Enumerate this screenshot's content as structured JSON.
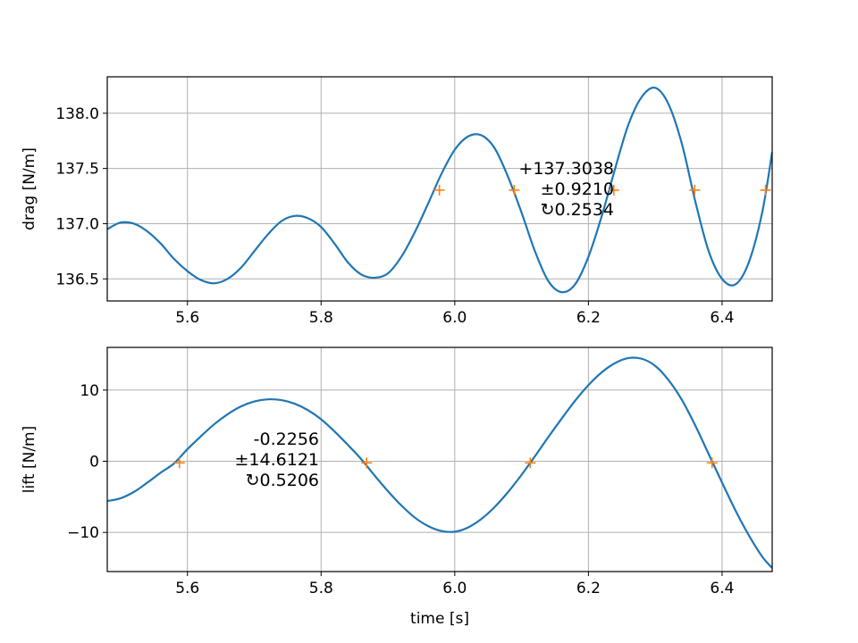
{
  "chart_data": [
    {
      "type": "line",
      "xlabel": "",
      "ylabel": "drag [N/m]",
      "xlim": [
        5.48,
        6.475
      ],
      "ylim": [
        136.3,
        138.33
      ],
      "xticks": [
        5.6,
        5.8,
        6.0,
        6.2,
        6.4
      ],
      "xtick_labels": [
        "5.6",
        "5.8",
        "6.0",
        "6.2",
        "6.4"
      ],
      "yticks": [
        136.5,
        137.0,
        137.5,
        138.0
      ],
      "ytick_labels": [
        "136.5",
        "137.0",
        "137.5",
        "138.0"
      ],
      "grid": true,
      "series": [
        {
          "color": "#1f77b4",
          "x": [
            5.48,
            5.5,
            5.52,
            5.54,
            5.56,
            5.58,
            5.6,
            5.62,
            5.64,
            5.66,
            5.68,
            5.7,
            5.72,
            5.74,
            5.76,
            5.78,
            5.8,
            5.82,
            5.84,
            5.86,
            5.88,
            5.9,
            5.92,
            5.94,
            5.96,
            5.98,
            6.0,
            6.02,
            6.04,
            6.06,
            6.08,
            6.1,
            6.12,
            6.14,
            6.16,
            6.18,
            6.2,
            6.22,
            6.24,
            6.26,
            6.28,
            6.3,
            6.32,
            6.34,
            6.36,
            6.38,
            6.4,
            6.42,
            6.44,
            6.46,
            6.475
          ],
          "y": [
            136.95,
            137.01,
            137.0,
            136.93,
            136.82,
            136.68,
            136.57,
            136.49,
            136.46,
            136.5,
            136.6,
            136.75,
            136.9,
            137.02,
            137.07,
            137.05,
            136.97,
            136.82,
            136.65,
            136.54,
            136.51,
            136.55,
            136.7,
            136.92,
            137.18,
            137.45,
            137.67,
            137.79,
            137.8,
            137.68,
            137.42,
            137.1,
            136.75,
            136.48,
            136.38,
            136.45,
            136.7,
            137.07,
            137.5,
            137.9,
            138.15,
            138.23,
            138.08,
            137.72,
            137.2,
            136.75,
            136.5,
            136.45,
            136.65,
            137.1,
            137.65
          ]
        },
        {
          "color": "#ff7f0e",
          "marker": "+",
          "x": [
            5.977,
            6.089,
            6.238,
            6.359,
            6.465
          ],
          "y": [
            137.3038,
            137.3038,
            137.3038,
            137.3038,
            137.3038
          ]
        }
      ],
      "annotation": [
        "+137.3038",
        "±0.9210",
        "↻0.2534"
      ]
    },
    {
      "type": "line",
      "xlabel": "time [s]",
      "ylabel": "lift [N/m]",
      "xlim": [
        5.48,
        6.475
      ],
      "ylim": [
        -15.5,
        16.0
      ],
      "xticks": [
        5.6,
        5.8,
        6.0,
        6.2,
        6.4
      ],
      "xtick_labels": [
        "5.6",
        "5.8",
        "6.0",
        "6.2",
        "6.4"
      ],
      "yticks": [
        -10,
        0,
        10
      ],
      "ytick_labels": [
        "−10",
        "0",
        "10"
      ],
      "grid": true,
      "series": [
        {
          "color": "#1f77b4",
          "x": [
            5.48,
            5.5,
            5.52,
            5.54,
            5.56,
            5.58,
            5.6,
            5.62,
            5.64,
            5.66,
            5.68,
            5.7,
            5.72,
            5.74,
            5.76,
            5.78,
            5.8,
            5.82,
            5.84,
            5.86,
            5.88,
            5.9,
            5.92,
            5.94,
            5.96,
            5.98,
            6.0,
            6.02,
            6.04,
            6.06,
            6.08,
            6.1,
            6.12,
            6.14,
            6.16,
            6.18,
            6.2,
            6.22,
            6.24,
            6.26,
            6.28,
            6.3,
            6.32,
            6.34,
            6.36,
            6.38,
            6.4,
            6.42,
            6.44,
            6.46,
            6.475
          ],
          "y": [
            -5.6,
            -5.2,
            -4.3,
            -3.0,
            -1.6,
            -0.3,
            1.7,
            3.5,
            5.2,
            6.6,
            7.7,
            8.4,
            8.7,
            8.6,
            8.1,
            7.2,
            5.9,
            4.2,
            2.3,
            0.3,
            -2.0,
            -4.2,
            -6.2,
            -7.9,
            -9.1,
            -9.8,
            -9.9,
            -9.3,
            -8.1,
            -6.4,
            -4.3,
            -1.9,
            0.7,
            3.4,
            6.0,
            8.5,
            10.7,
            12.5,
            13.8,
            14.5,
            14.4,
            13.4,
            11.4,
            8.6,
            5.0,
            1.0,
            -3.0,
            -6.9,
            -10.4,
            -13.4,
            -15.0
          ]
        },
        {
          "color": "#ff7f0e",
          "marker": "+",
          "x": [
            5.588,
            5.868,
            6.113,
            6.385
          ],
          "y": [
            -0.2256,
            -0.2256,
            -0.2256,
            -0.2256
          ]
        }
      ],
      "annotation": [
        "-0.2256",
        "±14.6121",
        "↻0.5206"
      ]
    }
  ]
}
